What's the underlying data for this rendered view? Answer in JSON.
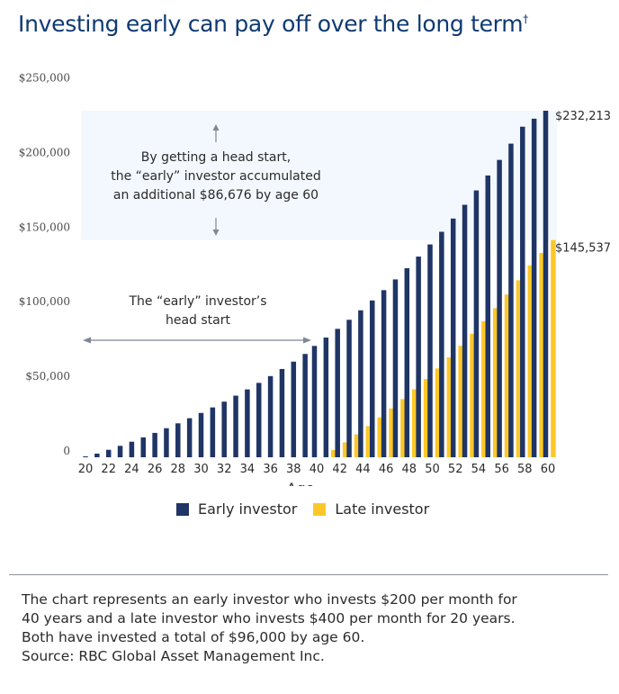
{
  "title": "Investing early can pay off over the long term",
  "title_mark": "†",
  "colors": {
    "early": "#1f3566",
    "late": "#fcc829",
    "highlight_band": "#f2f8fd",
    "arrow": "#7d8894",
    "title": "#0f3a73"
  },
  "annotations": {
    "gain_box_lines": [
      "By getting a head start,",
      "the “early” investor accumulated",
      "an additional $86,676 by age 60"
    ],
    "head_start_lines": [
      "The “early” investor’s",
      "head start"
    ]
  },
  "chart_data": {
    "type": "bar",
    "title": "Investing early can pay off over the long term",
    "xlabel": "Age",
    "ylabel": "",
    "ylim": [
      0,
      250000
    ],
    "yticks": [
      0,
      50000,
      100000,
      150000,
      200000,
      250000
    ],
    "ytick_labels": [
      "0",
      "$50,000",
      "$100,000",
      "$150,000",
      "$200,000",
      "$250,000"
    ],
    "xtick_labels": [
      "20",
      "22",
      "24",
      "26",
      "28",
      "30",
      "32",
      "34",
      "36",
      "38",
      "40",
      "42",
      "44",
      "46",
      "48",
      "50",
      "52",
      "54",
      "56",
      "58",
      "60"
    ],
    "categories": [
      20,
      21,
      22,
      23,
      24,
      25,
      26,
      27,
      28,
      29,
      30,
      31,
      32,
      33,
      34,
      35,
      36,
      37,
      38,
      39,
      40,
      41,
      42,
      43,
      44,
      45,
      46,
      47,
      48,
      49,
      50,
      51,
      52,
      53,
      54,
      55,
      56,
      57,
      58,
      59,
      60
    ],
    "legend": "bottom",
    "grid": false,
    "end_labels": {
      "early": "$232,213",
      "late": "$145,537"
    },
    "highlight_range": [
      145537,
      232213
    ],
    "series": [
      {
        "name": "Early investor",
        "values": [
          0,
          2450,
          5000,
          7660,
          10430,
          13320,
          16330,
          19470,
          22740,
          26150,
          29700,
          33400,
          37260,
          41280,
          45470,
          49840,
          54390,
          59130,
          64070,
          69230,
          74600,
          80200,
          86040,
          92130,
          98470,
          105080,
          111980,
          119170,
          126660,
          134470,
          142610,
          151100,
          159950,
          169170,
          178790,
          188810,
          199260,
          210150,
          221510,
          226870,
          232213
        ]
      },
      {
        "name": "Late investor",
        "values": [
          null,
          null,
          null,
          null,
          null,
          null,
          null,
          null,
          null,
          null,
          null,
          null,
          null,
          null,
          null,
          null,
          null,
          null,
          null,
          null,
          0,
          4900,
          10010,
          15330,
          20880,
          26670,
          32700,
          38990,
          45540,
          52380,
          59500,
          66930,
          74670,
          82740,
          91150,
          99920,
          109060,
          118590,
          128520,
          136890,
          145537
        ]
      }
    ]
  },
  "legend": {
    "items": [
      {
        "label": "Early investor"
      },
      {
        "label": "Late investor"
      }
    ]
  },
  "footnote": {
    "lines": [
      "The chart represents an early investor who invests $200 per month for",
      "40 years and a late investor who invests $400 per month for 20 years.",
      "Both have invested a total of $96,000 by age 60.",
      "Source: RBC Global Asset Management Inc."
    ]
  }
}
